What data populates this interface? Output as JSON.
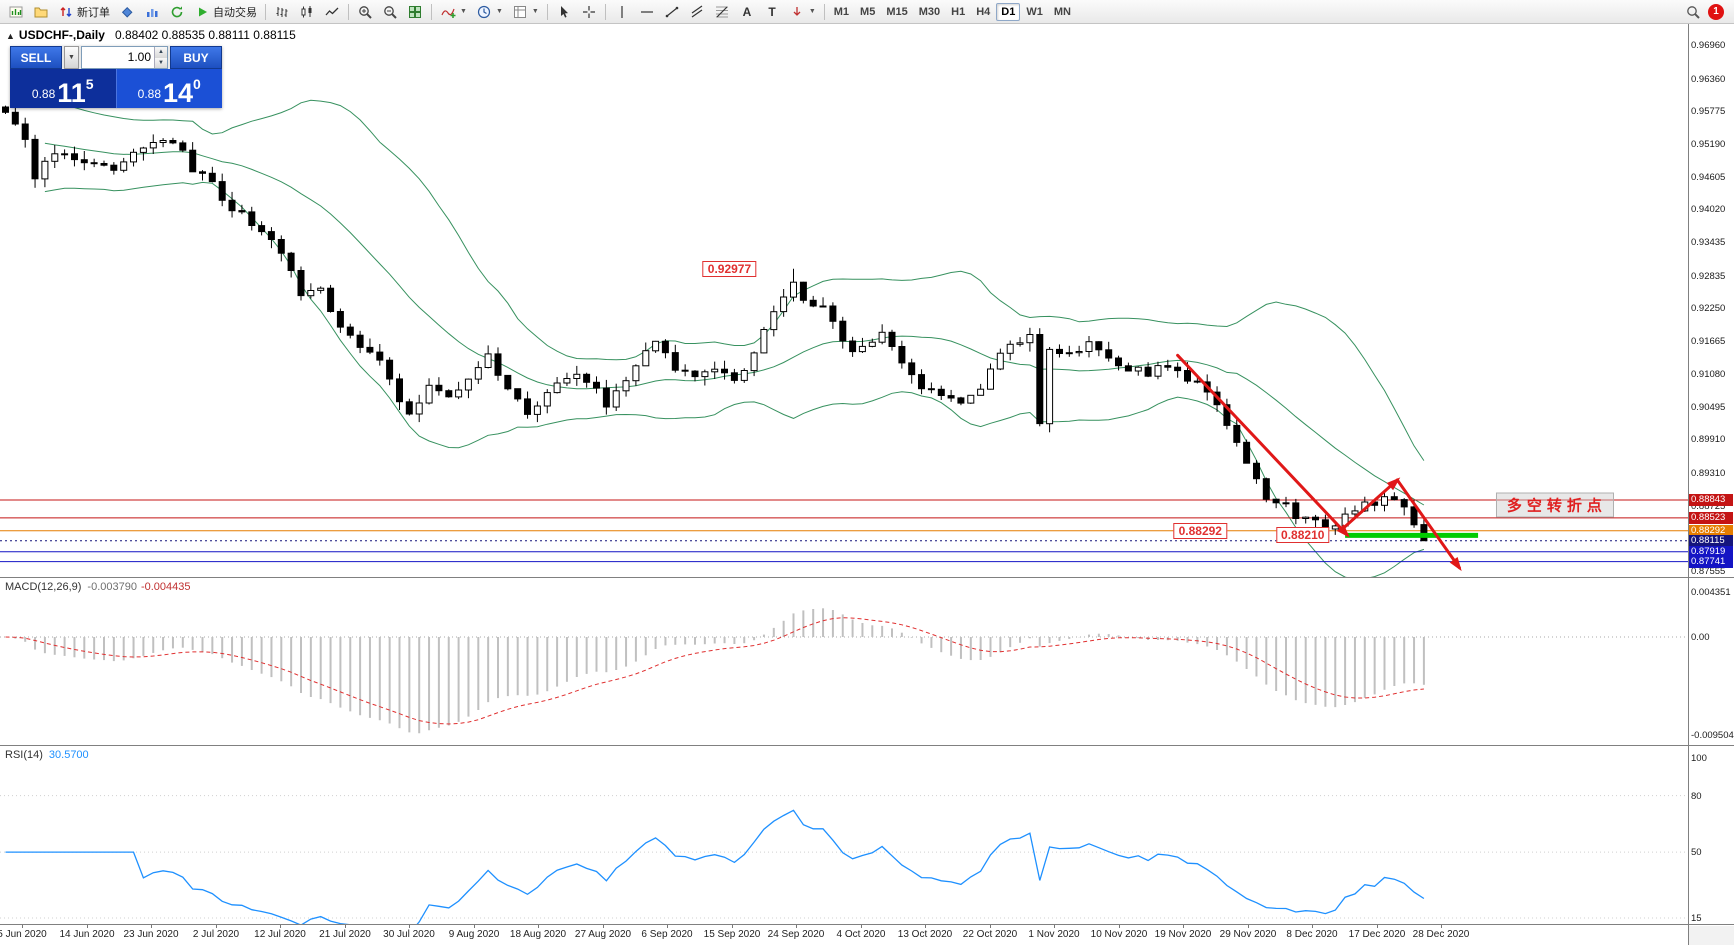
{
  "toolbar": {
    "new_order_label": "新订单",
    "autotrading_label": "自动交易",
    "timeframes": [
      "M1",
      "M5",
      "M15",
      "M30",
      "H1",
      "H4",
      "D1",
      "W1",
      "MN"
    ],
    "active_timeframe": "D1",
    "notification_count": "1"
  },
  "chart": {
    "title": "USDCHF-,Daily",
    "ohlc_line": "0.88402 0.88535 0.88111 0.88115",
    "trade_panel": {
      "sell_label": "SELL",
      "buy_label": "BUY",
      "volume": "1.00",
      "sell_price_base": "0.88",
      "sell_price_big": "11",
      "sell_price_sup": "5",
      "buy_price_base": "0.88",
      "buy_price_big": "14",
      "buy_price_sup": "0"
    },
    "callouts": {
      "peak": "0.92977",
      "support_a": "0.88292",
      "support_b": "0.88210",
      "turning_point": "多空转折点"
    },
    "axis_labels": [
      "0.96960",
      "0.96360",
      "0.95775",
      "0.95190",
      "0.94605",
      "0.94020",
      "0.93435",
      "0.92835",
      "0.92250",
      "0.91665",
      "0.91080",
      "0.90495",
      "0.89910",
      "0.89310",
      "0.88725",
      "0.87555"
    ],
    "price_badges": [
      {
        "label": "0.88843",
        "color": "#c41414"
      },
      {
        "label": "0.88523",
        "color": "#c41414"
      },
      {
        "label": "0.88292",
        "color": "#e57d00"
      },
      {
        "label": "0.88115",
        "color": "#15157d"
      },
      {
        "label": "0.87919",
        "color": "#1414c4"
      },
      {
        "label": "0.87741",
        "color": "#1414c4"
      }
    ],
    "dates": [
      "5 Jun 2020",
      "14 Jun 2020",
      "23 Jun 2020",
      "2 Jul 2020",
      "12 Jul 2020",
      "21 Jul 2020",
      "30 Jul 2020",
      "9 Aug 2020",
      "18 Aug 2020",
      "27 Aug 2020",
      "6 Sep 2020",
      "15 Sep 2020",
      "24 Sep 2020",
      "4 Oct 2020",
      "13 Oct 2020",
      "22 Oct 2020",
      "1 Nov 2020",
      "10 Nov 2020",
      "19 Nov 2020",
      "29 Nov 2020",
      "8 Dec 2020",
      "17 Dec 2020",
      "28 Dec 2020"
    ]
  },
  "macd_panel": {
    "label": "MACD(12,26,9)",
    "value_main": "-0.003790",
    "value_signal": "-0.004435",
    "axis": [
      {
        "label": "0.004351",
        "value": 0.004351
      },
      {
        "label": "0.00",
        "value": 0
      },
      {
        "label": "-0.009504",
        "value": -0.009504
      }
    ]
  },
  "rsi_panel": {
    "label": "RSI(14)",
    "value": "30.5700",
    "axis": [
      100,
      80,
      50,
      15
    ]
  },
  "chart_data": {
    "type": "candlestick",
    "symbol": "USDCHF",
    "period": "Daily",
    "n_candles": 145,
    "ylim": [
      0.87555,
      0.9696
    ],
    "last_ohlc": {
      "open": 0.88402,
      "high": 0.88535,
      "low": 0.88111,
      "close": 0.88115
    },
    "forced_peak_high": 0.92977,
    "support_price": 0.8821,
    "close_anchors": [
      [
        0,
        0.9572
      ],
      [
        2,
        0.9535
      ],
      [
        3,
        0.9465
      ],
      [
        5,
        0.9505
      ],
      [
        8,
        0.9495
      ],
      [
        11,
        0.9475
      ],
      [
        14,
        0.9515
      ],
      [
        17,
        0.953
      ],
      [
        19,
        0.9478
      ],
      [
        21,
        0.9452
      ],
      [
        22,
        0.9415
      ],
      [
        24,
        0.9392
      ],
      [
        26,
        0.9365
      ],
      [
        28,
        0.933
      ],
      [
        30,
        0.9245
      ],
      [
        32,
        0.9262
      ],
      [
        34,
        0.9196
      ],
      [
        36,
        0.916
      ],
      [
        38,
        0.9136
      ],
      [
        40,
        0.9062
      ],
      [
        41,
        0.9038
      ],
      [
        43,
        0.9082
      ],
      [
        45,
        0.9062
      ],
      [
        47,
        0.9105
      ],
      [
        49,
        0.9138
      ],
      [
        51,
        0.9082
      ],
      [
        53,
        0.9042
      ],
      [
        56,
        0.9092
      ],
      [
        58,
        0.9116
      ],
      [
        61,
        0.9058
      ],
      [
        63,
        0.9092
      ],
      [
        65,
        0.9148
      ],
      [
        66,
        0.9165
      ],
      [
        68,
        0.9122
      ],
      [
        70,
        0.9102
      ],
      [
        72,
        0.9126
      ],
      [
        74,
        0.9092
      ],
      [
        76,
        0.915
      ],
      [
        78,
        0.9216
      ],
      [
        80,
        0.9272
      ],
      [
        81,
        0.9242
      ],
      [
        83,
        0.9232
      ],
      [
        85,
        0.9162
      ],
      [
        87,
        0.9152
      ],
      [
        89,
        0.9186
      ],
      [
        91,
        0.9132
      ],
      [
        93,
        0.9082
      ],
      [
        95,
        0.9072
      ],
      [
        97,
        0.9052
      ],
      [
        99,
        0.9076
      ],
      [
        101,
        0.915
      ],
      [
        103,
        0.9162
      ],
      [
        104,
        0.9175
      ],
      [
        105,
        0.9022
      ],
      [
        106,
        0.9152
      ],
      [
        108,
        0.9142
      ],
      [
        110,
        0.9166
      ],
      [
        112,
        0.9132
      ],
      [
        114,
        0.9122
      ],
      [
        116,
        0.9112
      ],
      [
        118,
        0.9126
      ],
      [
        120,
        0.9102
      ],
      [
        122,
        0.9082
      ],
      [
        124,
        0.9022
      ],
      [
        126,
        0.8952
      ],
      [
        128,
        0.8892
      ],
      [
        130,
        0.8872
      ],
      [
        131,
        0.8852
      ],
      [
        133,
        0.8842
      ],
      [
        135,
        0.8832
      ],
      [
        137,
        0.8872
      ],
      [
        139,
        0.8882
      ],
      [
        140,
        0.8896
      ],
      [
        141,
        0.8886
      ],
      [
        142,
        0.8872
      ],
      [
        143,
        0.884
      ],
      [
        144,
        0.88115
      ]
    ],
    "hlines": [
      {
        "price": 0.88843,
        "color": "#c41414",
        "style": "solid"
      },
      {
        "price": 0.88523,
        "color": "#c41414",
        "style": "solid"
      },
      {
        "price": 0.88292,
        "color": "#e57d00",
        "style": "solid"
      },
      {
        "price": 0.88115,
        "color": "#15157d",
        "style": "dot"
      },
      {
        "price": 0.87919,
        "color": "#1414c4",
        "style": "solid"
      },
      {
        "price": 0.87741,
        "color": "#1414c4",
        "style": "solid"
      }
    ],
    "green_segment": {
      "i1": 136,
      "i2": 149.5,
      "price": 0.8821,
      "color": "#00cc00"
    },
    "drawings": [
      {
        "kind": "trend-arrow",
        "from": {
          "i": 119,
          "p": 0.9143
        },
        "to": {
          "i": 136.2,
          "p": 0.8822
        },
        "arrow": true
      },
      {
        "kind": "trend-arrow",
        "from": {
          "i": 135.7,
          "p": 0.8832
        },
        "to": {
          "i": 141.3,
          "p": 0.892
        },
        "arrow": true
      },
      {
        "kind": "trend-arrow",
        "from": {
          "i": 141.3,
          "p": 0.892
        },
        "to": {
          "i": 147.6,
          "p": 0.8763
        },
        "arrow": true
      }
    ],
    "callout_positions": {
      "peak": {
        "i": 73.5,
        "p": 0.92977
      },
      "support_a": {
        "i": 121.3,
        "p": 0.88292
      },
      "support_b": {
        "i": 131.7,
        "p": 0.8821
      },
      "turning_point": {
        "i": 157.3,
        "p": 0.88753
      }
    },
    "bollinger": {
      "period": 20,
      "deviation": 2
    },
    "macd": {
      "fast": 12,
      "slow": 26,
      "signal": 9
    },
    "rsi": {
      "period": 14
    },
    "indicator_axis": {
      "macd_range": [
        -0.009504,
        0.004351
      ],
      "rsi_levels": [
        100,
        80,
        50,
        15
      ]
    }
  }
}
